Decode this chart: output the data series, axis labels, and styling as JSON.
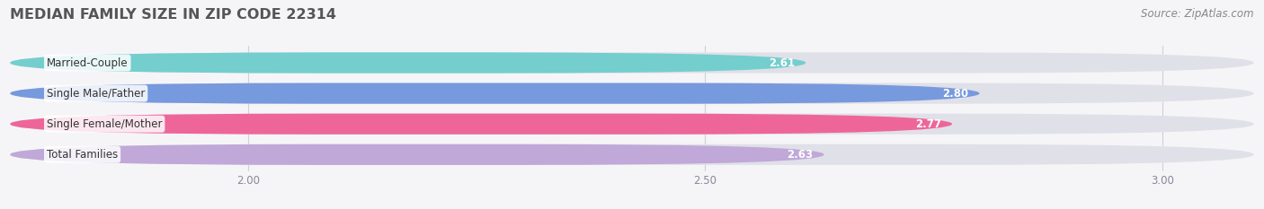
{
  "title": "MEDIAN FAMILY SIZE IN ZIP CODE 22314",
  "source": "Source: ZipAtlas.com",
  "categories": [
    "Married-Couple",
    "Single Male/Father",
    "Single Female/Mother",
    "Total Families"
  ],
  "values": [
    2.61,
    2.8,
    2.77,
    2.63
  ],
  "bar_colors": [
    "#74cece",
    "#7799dd",
    "#ee6699",
    "#c0a8d8"
  ],
  "bg_bar_color": "#e4e4ec",
  "xlim_left": 1.74,
  "xlim_right": 3.1,
  "xticks": [
    2.0,
    2.5,
    3.0
  ],
  "xtick_labels": [
    "2.00",
    "2.50",
    "3.00"
  ],
  "label_fontsize": 8.5,
  "value_fontsize": 8.5,
  "title_fontsize": 11.5,
  "source_fontsize": 8.5,
  "background_color": "#f5f5f8",
  "bar_bg_color": "#e0e0e8",
  "grid_color": "#d0d0d8",
  "tick_color": "#888899"
}
